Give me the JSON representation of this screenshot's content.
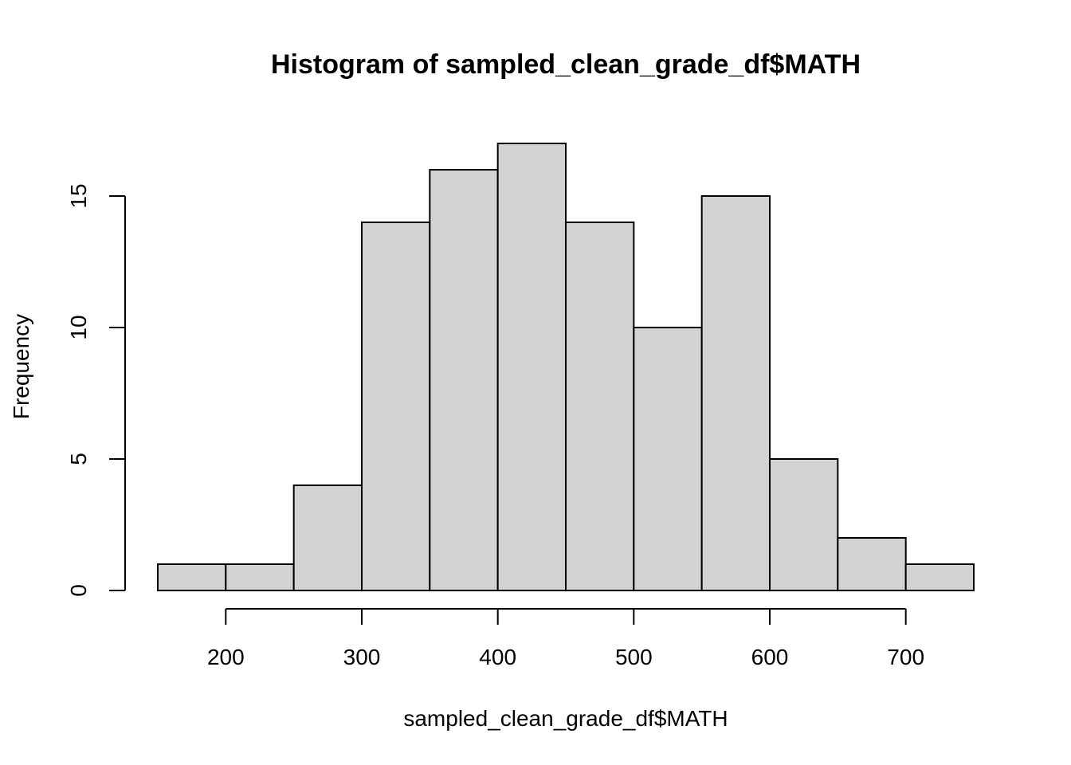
{
  "chart_data": {
    "type": "bar",
    "title": "Histogram of sampled_clean_grade_df$MATH",
    "xlabel": "sampled_clean_grade_df$MATH",
    "ylabel": "Frequency",
    "bins": [
      {
        "start": 150,
        "end": 200,
        "count": 1
      },
      {
        "start": 200,
        "end": 250,
        "count": 1
      },
      {
        "start": 250,
        "end": 300,
        "count": 4
      },
      {
        "start": 300,
        "end": 350,
        "count": 14
      },
      {
        "start": 350,
        "end": 400,
        "count": 16
      },
      {
        "start": 400,
        "end": 450,
        "count": 17
      },
      {
        "start": 450,
        "end": 500,
        "count": 14
      },
      {
        "start": 500,
        "end": 550,
        "count": 10
      },
      {
        "start": 550,
        "end": 600,
        "count": 15
      },
      {
        "start": 600,
        "end": 650,
        "count": 5
      },
      {
        "start": 650,
        "end": 700,
        "count": 2
      },
      {
        "start": 700,
        "end": 750,
        "count": 1
      }
    ],
    "xlim": [
      150,
      750
    ],
    "ylim": [
      0,
      17
    ],
    "x_ticks": [
      200,
      300,
      400,
      500,
      600,
      700
    ],
    "y_ticks": [
      0,
      5,
      10,
      15
    ],
    "grid": false,
    "bar_fill": "#d3d3d3",
    "bar_stroke": "#000000"
  }
}
